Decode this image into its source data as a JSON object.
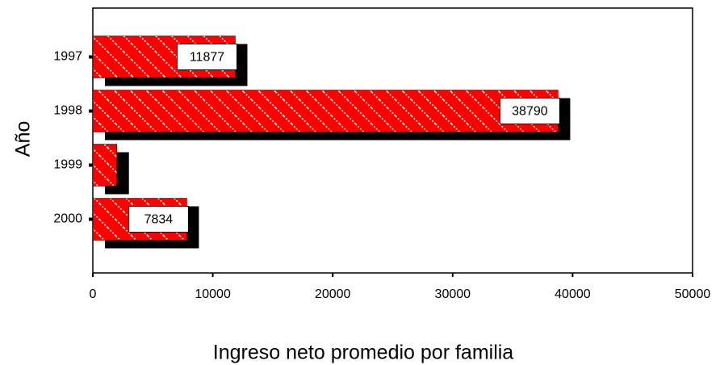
{
  "chart_data": {
    "type": "hbar",
    "xlabel": "Ingreso neto promedio por familia",
    "ylabel": "Año",
    "categories": [
      "1997",
      "1998",
      "1999",
      "2000"
    ],
    "values": [
      11877,
      38790,
      2000,
      7834
    ],
    "value_labels": [
      "11877",
      "38790",
      null,
      "7834"
    ],
    "color": "#ff0000",
    "xlim": [
      0,
      50000
    ],
    "xticks": [
      0,
      10000,
      20000,
      30000,
      40000,
      50000
    ]
  }
}
